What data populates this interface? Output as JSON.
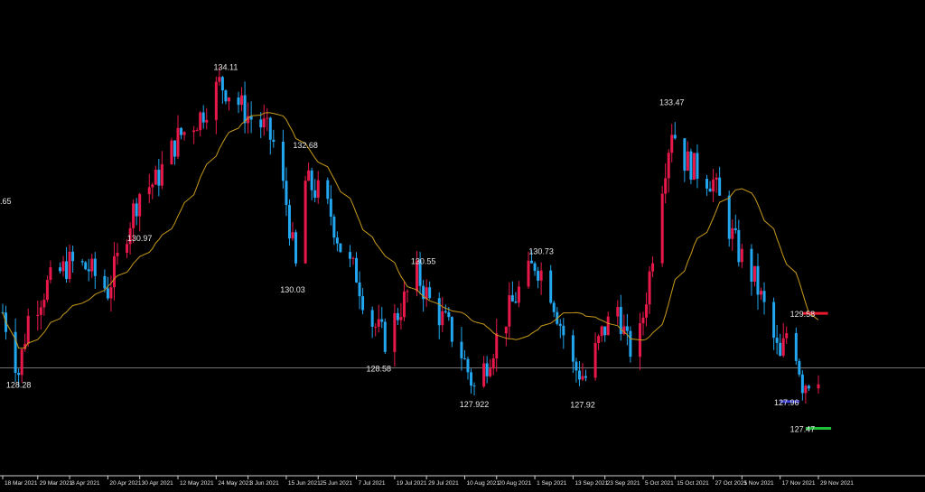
{
  "chart_data": {
    "type": "candlestick",
    "title": "",
    "xlabel": "",
    "ylabel": "",
    "ylim": [
      126.6,
      135.0
    ],
    "colors": {
      "background": "#000000",
      "bull": "#e8194a",
      "bear": "#22a7f0",
      "moving_average": "#c79a1c",
      "reference_line": "#9a9a9a",
      "resistance": "#e8192c",
      "support_blue": "#3b3fd6",
      "support_green": "#1fbf3a",
      "axis": "#cfcfcf",
      "label": "#e6e6e6"
    },
    "x_ticks": [
      "18 Mar 2021",
      "29 Mar 2021",
      "8 Apr 2021",
      "20 Apr 2021",
      "30 Apr 2021",
      "12 May 2021",
      "24 May 2021",
      "3 Jun 2021",
      "15 Jun 2021",
      "25 Jun 2021",
      "7 Jul 2021",
      "19 Jul 2021",
      "29 Jul 2021",
      "10 Aug 2021",
      "20 Aug 2021",
      "1 Sep 2021",
      "13 Sep 2021",
      "23 Sep 2021",
      "5 Oct 2021",
      "15 Oct 2021",
      "27 Oct 2021",
      "5 Nov 2021",
      "17 Nov 2021",
      "29 Nov 2021"
    ],
    "reference_level": 128.58,
    "annotations": [
      {
        "text": ".65",
        "date": "18 Mar 2021",
        "price": 131.65
      },
      {
        "text": "128.28",
        "date": "23 Mar 2021",
        "price": 128.28
      },
      {
        "text": "130.97",
        "date": "30 Apr 2021",
        "price": 130.97
      },
      {
        "text": "134.11",
        "date": "27 May 2021",
        "price": 134.11
      },
      {
        "text": "132.68",
        "date": "21 Jun 2021",
        "price": 132.68
      },
      {
        "text": "130.03",
        "date": "17 Jun 2021",
        "price": 130.03
      },
      {
        "text": "128.58",
        "date": "14 Jul 2021",
        "price": 128.58
      },
      {
        "text": "130.55",
        "date": "28 Jul 2021",
        "price": 130.55
      },
      {
        "text": "127.922",
        "date": "13 Aug 2021",
        "price": 127.922
      },
      {
        "text": "130.73",
        "date": "3 Sep 2021",
        "price": 130.73
      },
      {
        "text": "127.92",
        "date": "16 Sep 2021",
        "price": 127.92
      },
      {
        "text": "133.47",
        "date": "14 Oct 2021",
        "price": 133.47
      },
      {
        "text": "129.58",
        "date": "24 Nov 2021",
        "price": 129.58
      },
      {
        "text": "127.96",
        "date": "19 Nov 2021",
        "price": 127.96
      },
      {
        "text": "127.47",
        "date": "24 Nov 2021",
        "price": 127.47
      }
    ],
    "levels": [
      {
        "price": 129.58,
        "from": "24 Nov 2021",
        "to": "2 Dec 2021",
        "color": "resistance"
      },
      {
        "price": 127.96,
        "from": "17 Nov 2021",
        "to": "23 Nov 2021",
        "color": "support_blue"
      },
      {
        "price": 127.47,
        "from": "25 Nov 2021",
        "to": "3 Dec 2021",
        "color": "support_green"
      }
    ],
    "price_path": [
      [
        "18 Mar 2021",
        129.6
      ],
      [
        "23 Mar 2021",
        128.5
      ],
      [
        "26 Mar 2021",
        129.5
      ],
      [
        "1 Apr 2021",
        130.1
      ],
      [
        "8 Apr 2021",
        130.5
      ],
      [
        "14 Apr 2021",
        130.4
      ],
      [
        "20 Apr 2021",
        130.0
      ],
      [
        "27 Apr 2021",
        131.3
      ],
      [
        "30 Apr 2021",
        131.8
      ],
      [
        "5 May 2021",
        132.0
      ],
      [
        "12 May 2021",
        132.8
      ],
      [
        "19 May 2021",
        133.2
      ],
      [
        "25 May 2021",
        133.8
      ],
      [
        "29 May 2021",
        133.6
      ],
      [
        "3 Jun 2021",
        133.2
      ],
      [
        "8 Jun 2021",
        133.0
      ],
      [
        "11 Jun 2021",
        132.7
      ],
      [
        "15 Jun 2021",
        131.6
      ],
      [
        "18 Jun 2021",
        130.4
      ],
      [
        "21 Jun 2021",
        132.0
      ],
      [
        "25 Jun 2021",
        131.8
      ],
      [
        "29 Jun 2021",
        131.4
      ],
      [
        "3 Jul 2021",
        130.6
      ],
      [
        "7 Jul 2021",
        130.3
      ],
      [
        "11 Jul 2021",
        129.5
      ],
      [
        "16 Jul 2021",
        129.1
      ],
      [
        "21 Jul 2021",
        129.7
      ],
      [
        "26 Jul 2021",
        130.3
      ],
      [
        "30 Jul 2021",
        129.8
      ],
      [
        "4 Aug 2021",
        129.4
      ],
      [
        "8 Aug 2021",
        129.0
      ],
      [
        "13 Aug 2021",
        128.2
      ],
      [
        "17 Aug 2021",
        128.7
      ],
      [
        "22 Aug 2021",
        129.4
      ],
      [
        "27 Aug 2021",
        130.0
      ],
      [
        "1 Sep 2021",
        130.5
      ],
      [
        "5 Sep 2021",
        130.2
      ],
      [
        "9 Sep 2021",
        129.4
      ],
      [
        "13 Sep 2021",
        128.6
      ],
      [
        "17 Sep 2021",
        128.4
      ],
      [
        "22 Sep 2021",
        129.2
      ],
      [
        "27 Sep 2021",
        129.7
      ],
      [
        "30 Sep 2021",
        129.0
      ],
      [
        "3 Oct 2021",
        128.8
      ],
      [
        "7 Oct 2021",
        130.3
      ],
      [
        "11 Oct 2021",
        132.0
      ],
      [
        "14 Oct 2021",
        133.0
      ],
      [
        "18 Oct 2021",
        132.4
      ],
      [
        "22 Oct 2021",
        132.2
      ],
      [
        "27 Oct 2021",
        132.0
      ],
      [
        "31 Oct 2021",
        131.3
      ],
      [
        "4 Nov 2021",
        130.7
      ],
      [
        "9 Nov 2021",
        130.2
      ],
      [
        "13 Nov 2021",
        129.5
      ],
      [
        "17 Nov 2021",
        128.7
      ],
      [
        "20 Nov 2021",
        129.5
      ],
      [
        "24 Nov 2021",
        128.3
      ],
      [
        "29 Nov 2021",
        128.5
      ]
    ]
  }
}
